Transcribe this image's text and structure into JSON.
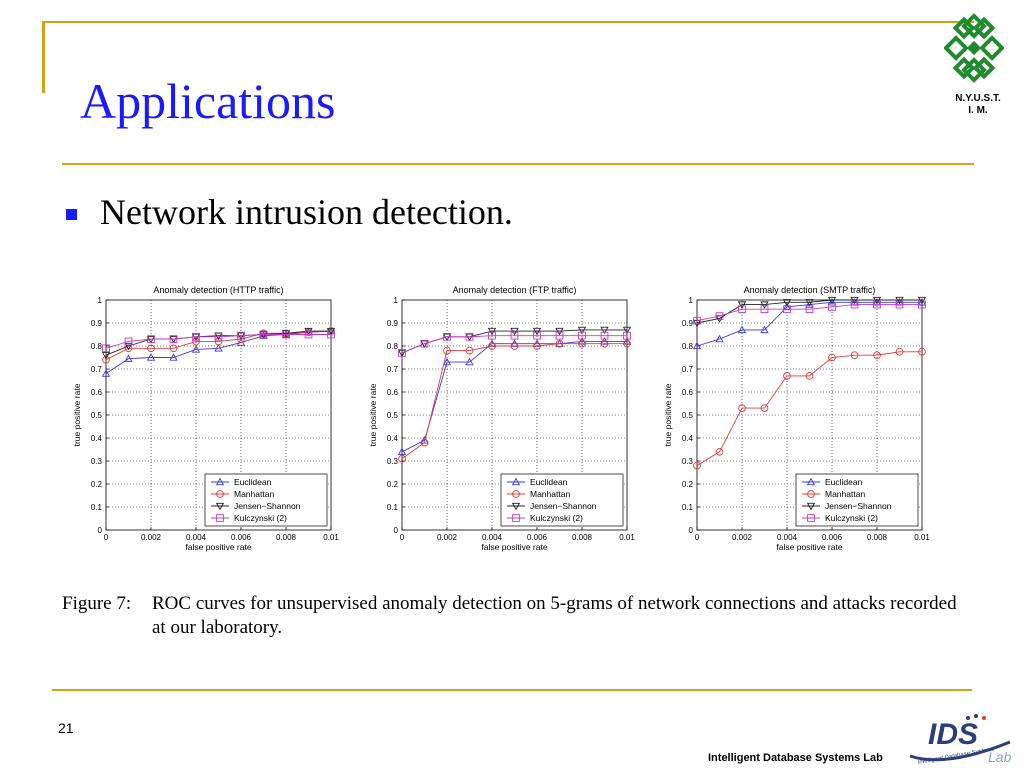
{
  "slide": {
    "title": "Applications",
    "school_line1": "N.Y.U.S.T.",
    "school_line2": "I. M.",
    "bullet": "Network intrusion detection.",
    "caption_label": "Figure 7:",
    "caption_text": "ROC curves for unsupervised anomaly detection on 5-grams of network connections and attacks recorded at our laboratory.",
    "page_number": "21",
    "lab_name": "Intelligent Database Systems Lab",
    "lab_logo_text": "IDS",
    "lab_logo_sub": "Lab",
    "lab_logo_tag": "Intelligent Database Systems"
  },
  "colors": {
    "title": "#1a1aff",
    "rule": "#d4a017",
    "logo_green": "#1f8a2e",
    "Euclidean": "#3a3adf",
    "Manhattan": "#e03a3a",
    "Jensen-Shannon": "#222222",
    "Kulczynski": "#c43ac4"
  },
  "chart_data": [
    {
      "type": "line",
      "title": "Anomaly detection (HTTP traffic)",
      "xlabel": "false positive rate",
      "ylabel": "true positive rate",
      "xlim": [
        0,
        0.01
      ],
      "ylim": [
        0,
        1
      ],
      "xticks": [
        "0",
        "0.002",
        "0.004",
        "0.006",
        "0.008",
        "0.01"
      ],
      "yticks": [
        "0",
        "0.1",
        "0.2",
        "0.3",
        "0.4",
        "0.5",
        "0.6",
        "0.7",
        "0.8",
        "0.9",
        "1"
      ],
      "grid": true,
      "legend": "bottom-right",
      "x": [
        0,
        0.001,
        0.002,
        0.003,
        0.004,
        0.005,
        0.006,
        0.007,
        0.008,
        0.009,
        0.01
      ],
      "series": [
        {
          "name": "Euclidean",
          "marker": "triangle-up",
          "values": [
            0.68,
            0.745,
            0.75,
            0.75,
            0.785,
            0.79,
            0.815,
            0.845,
            0.85,
            0.86,
            0.865
          ]
        },
        {
          "name": "Manhattan",
          "marker": "circle",
          "values": [
            0.74,
            0.79,
            0.79,
            0.79,
            0.82,
            0.82,
            0.83,
            0.855,
            0.855,
            0.86,
            0.865
          ]
        },
        {
          "name": "Jensen−Shannon",
          "marker": "triangle-down",
          "values": [
            0.76,
            0.8,
            0.83,
            0.83,
            0.84,
            0.845,
            0.845,
            0.85,
            0.855,
            0.865,
            0.865
          ]
        },
        {
          "name": "Kulczynski (2)",
          "marker": "square",
          "values": [
            0.79,
            0.82,
            0.83,
            0.83,
            0.84,
            0.84,
            0.845,
            0.85,
            0.85,
            0.85,
            0.85
          ]
        }
      ]
    },
    {
      "type": "line",
      "title": "Anomaly detection (FTP traffic)",
      "xlabel": "false positive rate",
      "ylabel": "true positive rate",
      "xlim": [
        0,
        0.01
      ],
      "ylim": [
        0,
        1
      ],
      "xticks": [
        "0",
        "0.002",
        "0.004",
        "0.006",
        "0.008",
        "0.01"
      ],
      "yticks": [
        "0",
        "0.1",
        "0.2",
        "0.3",
        "0.4",
        "0.5",
        "0.6",
        "0.7",
        "0.8",
        "0.9",
        "1"
      ],
      "grid": true,
      "legend": "bottom-right",
      "x": [
        0,
        0.001,
        0.002,
        0.003,
        0.004,
        0.005,
        0.006,
        0.007,
        0.008,
        0.009,
        0.01
      ],
      "series": [
        {
          "name": "Euclidean",
          "marker": "triangle-up",
          "values": [
            0.34,
            0.39,
            0.73,
            0.73,
            0.81,
            0.81,
            0.81,
            0.81,
            0.82,
            0.82,
            0.82
          ]
        },
        {
          "name": "Manhattan",
          "marker": "circle",
          "values": [
            0.31,
            0.38,
            0.78,
            0.78,
            0.8,
            0.8,
            0.8,
            0.81,
            0.81,
            0.81,
            0.81
          ]
        },
        {
          "name": "Jensen−Shannon",
          "marker": "triangle-down",
          "values": [
            0.77,
            0.81,
            0.84,
            0.84,
            0.865,
            0.865,
            0.865,
            0.865,
            0.87,
            0.87,
            0.87
          ]
        },
        {
          "name": "Kulczynski (2)",
          "marker": "square",
          "values": [
            0.77,
            0.81,
            0.84,
            0.84,
            0.845,
            0.845,
            0.845,
            0.845,
            0.845,
            0.845,
            0.845
          ]
        }
      ]
    },
    {
      "type": "line",
      "title": "Anomaly detection (SMTP traffic)",
      "xlabel": "false positive rate",
      "ylabel": "true positive rate",
      "xlim": [
        0,
        0.01
      ],
      "ylim": [
        0,
        1
      ],
      "xticks": [
        "0",
        "0.002",
        "0.004",
        "0.006",
        "0.008",
        "0.01"
      ],
      "yticks": [
        "0",
        "0.1",
        "0.2",
        "0.3",
        "0.4",
        "0.5",
        "0.6",
        "0.7",
        "0.8",
        "0.9",
        "1"
      ],
      "grid": true,
      "legend": "bottom-right",
      "x": [
        0,
        0.001,
        0.002,
        0.003,
        0.004,
        0.005,
        0.006,
        0.007,
        0.008,
        0.009,
        0.01
      ],
      "series": [
        {
          "name": "Euclidean",
          "marker": "triangle-up",
          "values": [
            0.8,
            0.83,
            0.87,
            0.87,
            0.97,
            0.98,
            0.99,
            0.99,
            0.99,
            0.99,
            0.99
          ]
        },
        {
          "name": "Manhattan",
          "marker": "circle",
          "values": [
            0.28,
            0.34,
            0.53,
            0.53,
            0.67,
            0.67,
            0.75,
            0.76,
            0.76,
            0.775,
            0.775
          ]
        },
        {
          "name": "Jensen−Shannon",
          "marker": "triangle-down",
          "values": [
            0.9,
            0.92,
            0.98,
            0.98,
            0.99,
            0.99,
            1.0,
            1.0,
            1.0,
            1.0,
            1.0
          ]
        },
        {
          "name": "Kulczynski (2)",
          "marker": "square",
          "values": [
            0.91,
            0.93,
            0.96,
            0.96,
            0.96,
            0.96,
            0.97,
            0.98,
            0.98,
            0.98,
            0.98
          ]
        }
      ]
    }
  ]
}
